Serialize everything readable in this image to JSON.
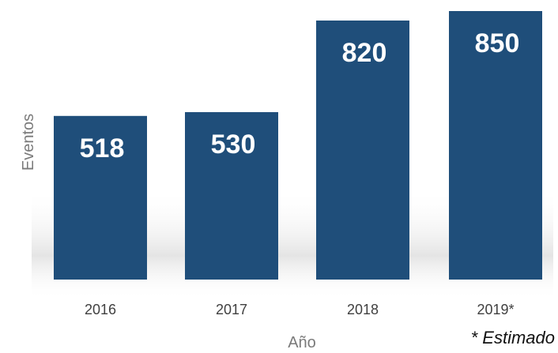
{
  "chart_data": {
    "type": "bar",
    "categories": [
      "2016",
      "2017",
      "2018",
      "2019*"
    ],
    "values": [
      518,
      530,
      820,
      850
    ],
    "data_labels": [
      "518",
      "530",
      "820",
      "850"
    ],
    "xlabel": "Año",
    "ylabel": "Eventos",
    "note": "* Estimado",
    "ylim": [
      0,
      860
    ],
    "grid": false,
    "legend": "none",
    "colors": {
      "bar": "#1f4e7a",
      "background": "#ffffff"
    }
  }
}
